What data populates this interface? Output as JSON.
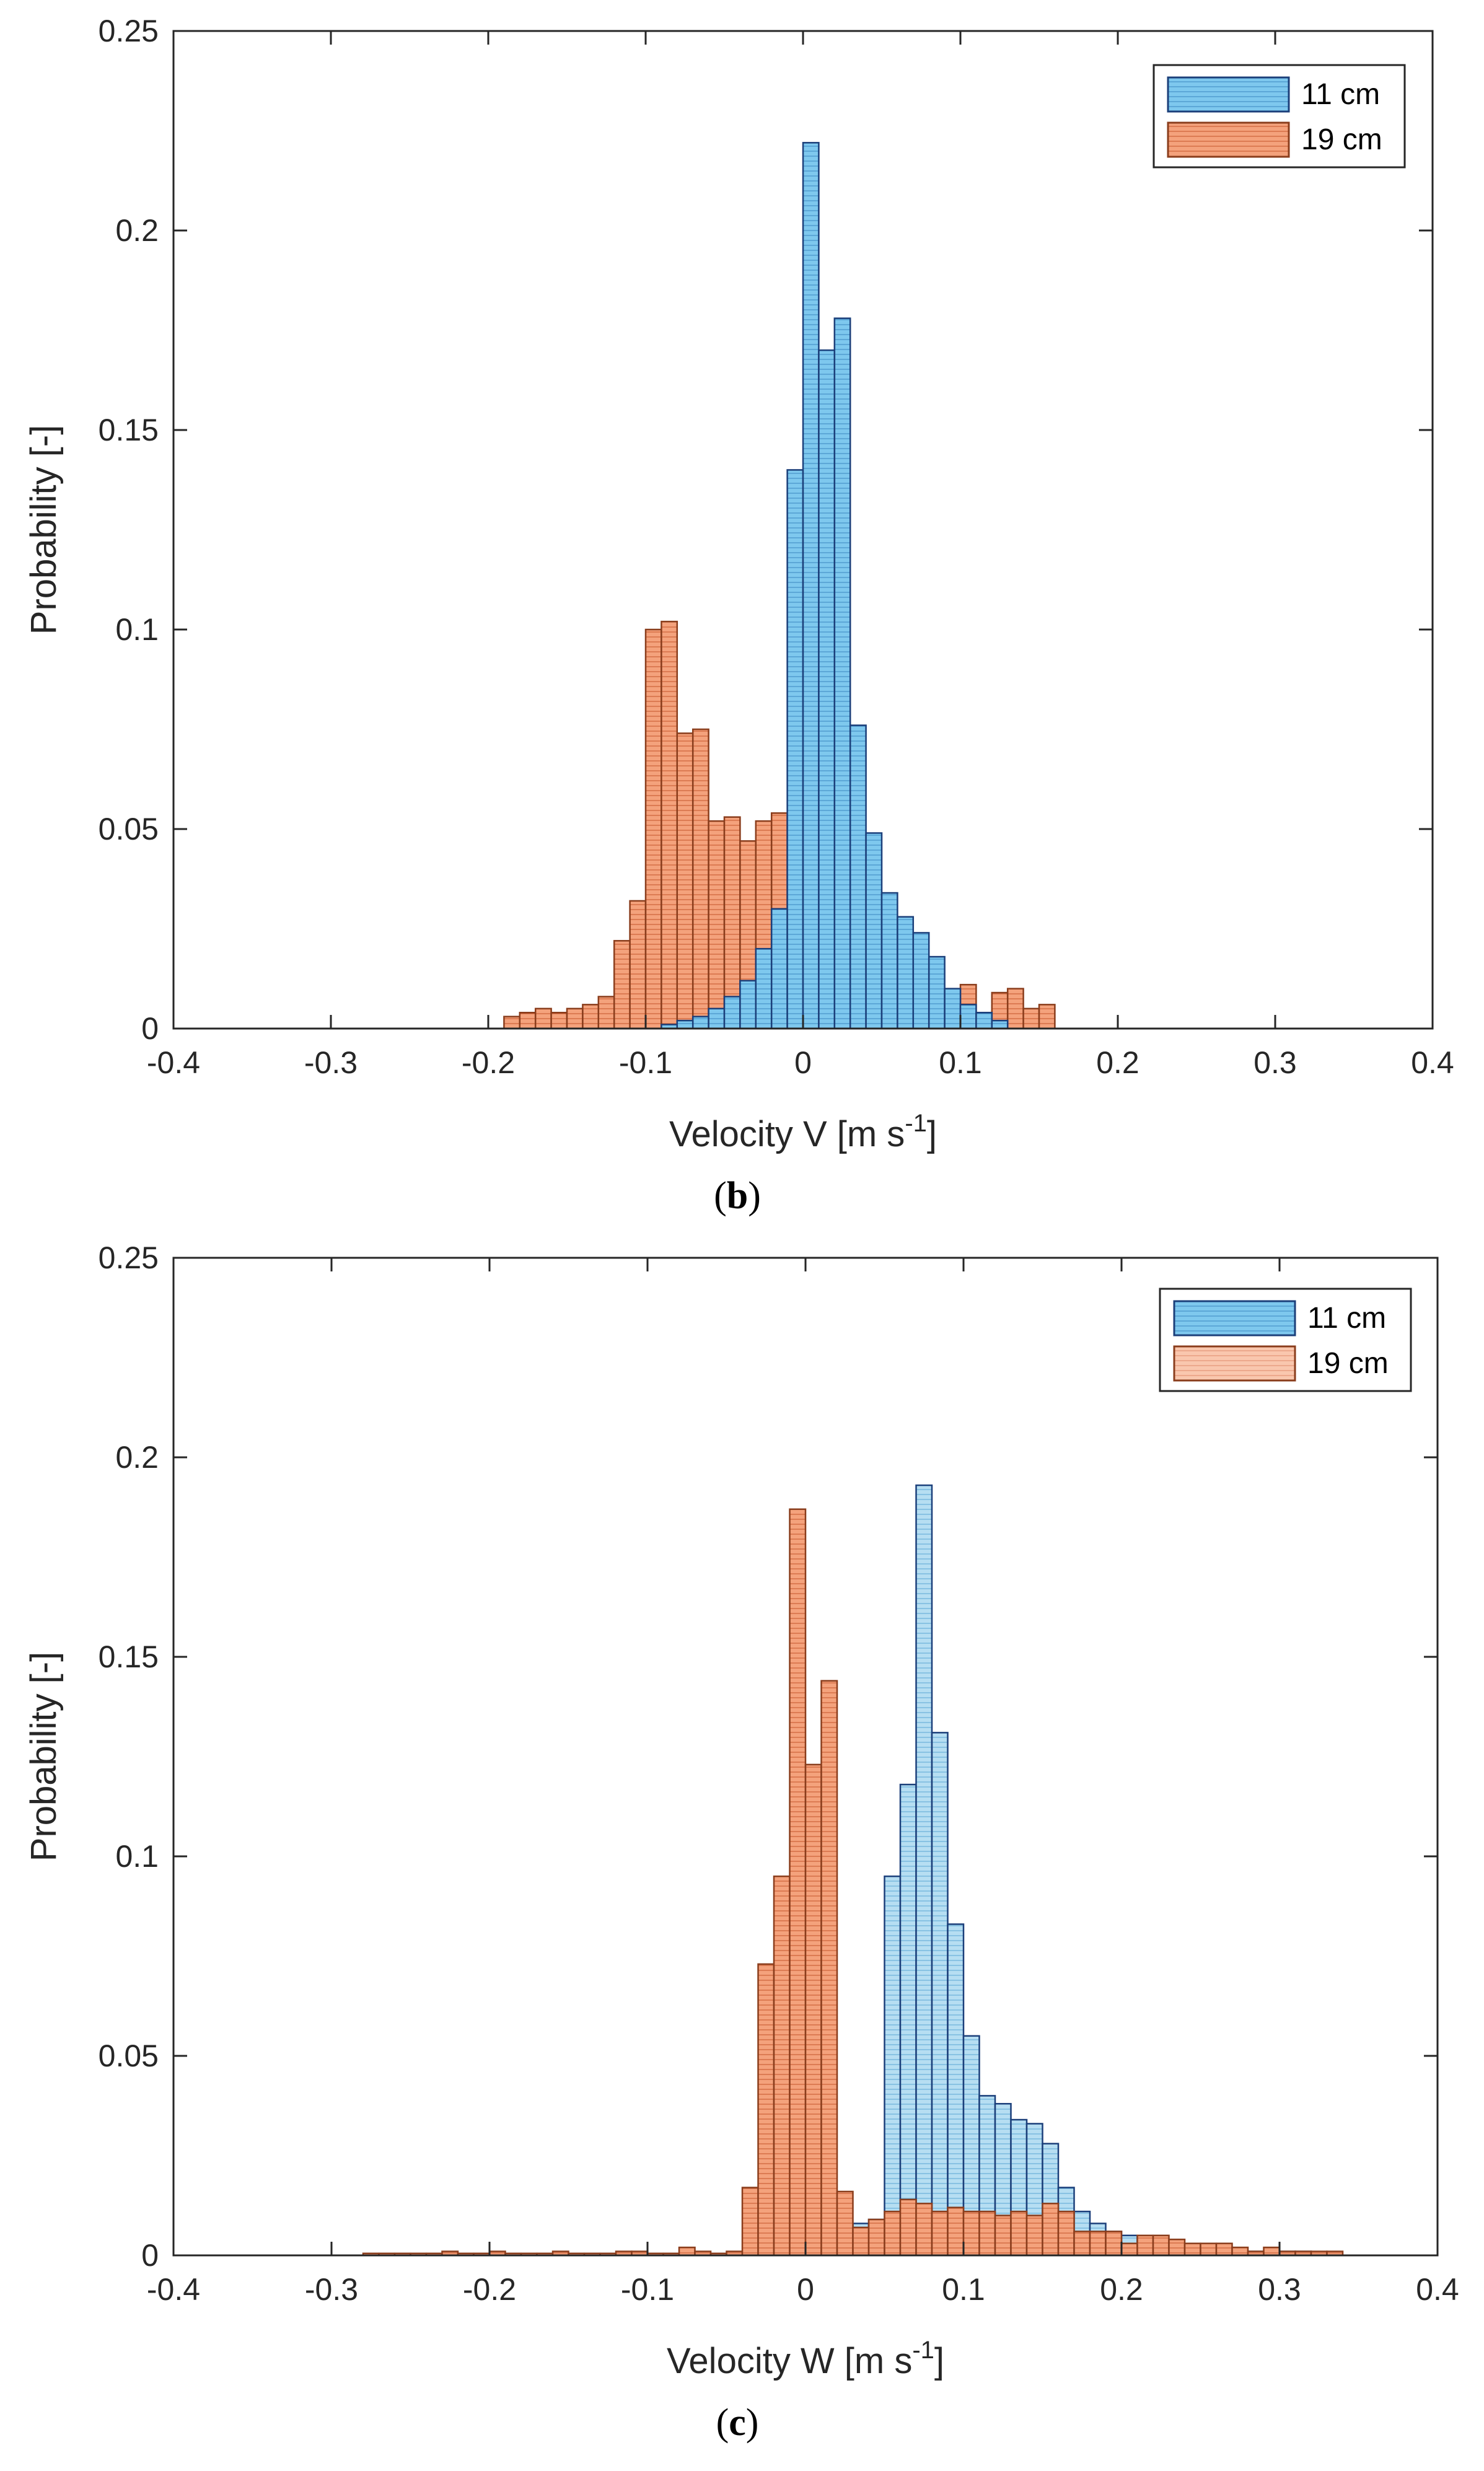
{
  "chart_data": [
    {
      "type": "bar",
      "panel_label": "b",
      "xlabel": "Velocity V [m s",
      "xlabel_sup": "-1",
      "xlabel_close": "]",
      "ylabel": "Probability [-]",
      "xlim": [
        -0.4,
        0.4
      ],
      "ylim": [
        0,
        0.25
      ],
      "xticks": [
        "-0.4",
        "-0.3",
        "-0.2",
        "-0.1",
        "0",
        "0.1",
        "0.2",
        "0.3",
        "0.4"
      ],
      "yticks": [
        "0",
        "0.05",
        "0.1",
        "0.15",
        "0.2",
        "0.25"
      ],
      "legend_position": "top-right",
      "bin_width": 0.01,
      "series": [
        {
          "name": "11 cm",
          "color": "#7ec8ee",
          "line_color": "#1b3f7a",
          "bin_start": -0.09,
          "values": [
            0.001,
            0.002,
            0.003,
            0.005,
            0.008,
            0.012,
            0.02,
            0.03,
            0.14,
            0.222,
            0.17,
            0.178,
            0.076,
            0.049,
            0.034,
            0.028,
            0.024,
            0.018,
            0.01,
            0.006,
            0.004,
            0.002
          ]
        },
        {
          "name": "19 cm",
          "color": "#f4a27c",
          "line_color": "#8a3d1c",
          "bin_start": -0.19,
          "values": [
            0.003,
            0.004,
            0.005,
            0.004,
            0.005,
            0.006,
            0.008,
            0.022,
            0.032,
            0.1,
            0.102,
            0.074,
            0.075,
            0.052,
            0.053,
            0.047,
            0.052,
            0.054,
            0.053,
            0.047,
            0.031,
            0.02,
            0.015,
            0.011,
            0.015,
            0.012,
            0.012,
            0.008,
            0.006,
            0.011,
            0.004,
            0.009,
            0.01,
            0.005,
            0.006
          ]
        }
      ]
    },
    {
      "type": "bar",
      "panel_label": "c",
      "xlabel": "Velocity W [m s",
      "xlabel_sup": "-1",
      "xlabel_close": "]",
      "ylabel": "Probability [-]",
      "xlim": [
        -0.4,
        0.4
      ],
      "ylim": [
        0,
        0.25
      ],
      "xticks": [
        "-0.4",
        "-0.3",
        "-0.2",
        "-0.1",
        "0",
        "0.1",
        "0.2",
        "0.3",
        "0.4"
      ],
      "yticks": [
        "0",
        "0.05",
        "0.1",
        "0.15",
        "0.2",
        "0.25"
      ],
      "legend_position": "top-right",
      "bin_width": 0.01,
      "series": [
        {
          "name": "11 cm",
          "color": "#b6def2",
          "line_color": "#1b3f7a",
          "bin_start": -0.02,
          "values": [
            0.001,
            0.002,
            0.004,
            0.006,
            0.007,
            0.008,
            0.009,
            0.095,
            0.118,
            0.193,
            0.131,
            0.083,
            0.055,
            0.04,
            0.038,
            0.034,
            0.033,
            0.028,
            0.017,
            0.011,
            0.008,
            0.006,
            0.005,
            0.004,
            0.003,
            0.003,
            0.002,
            0.001,
            0.001,
            0.001,
            0.001,
            0.001,
            0.001,
            0.001
          ]
        },
        {
          "name": "19 cm",
          "color": "#f4a27c",
          "line_color": "#8a3d1c",
          "bin_start": -0.28,
          "values": [
            0.0005,
            0.0005,
            0.0005,
            0.0005,
            0.0005,
            0.001,
            0.0005,
            0.0005,
            0.001,
            0.0005,
            0.0005,
            0.0005,
            0.001,
            0.0005,
            0.0005,
            0.0005,
            0.001,
            0.001,
            0.0005,
            0.0005,
            0.002,
            0.001,
            0.0005,
            0.001,
            0.017,
            0.073,
            0.095,
            0.187,
            0.123,
            0.144,
            0.016,
            0.007,
            0.009,
            0.011,
            0.014,
            0.013,
            0.011,
            0.012,
            0.011,
            0.011,
            0.01,
            0.011,
            0.01,
            0.013,
            0.011,
            0.006,
            0.006,
            0.006,
            0.003,
            0.005,
            0.005,
            0.004,
            0.003,
            0.003,
            0.003,
            0.002,
            0.001,
            0.002,
            0.001,
            0.001,
            0.001,
            0.001
          ]
        }
      ]
    }
  ]
}
